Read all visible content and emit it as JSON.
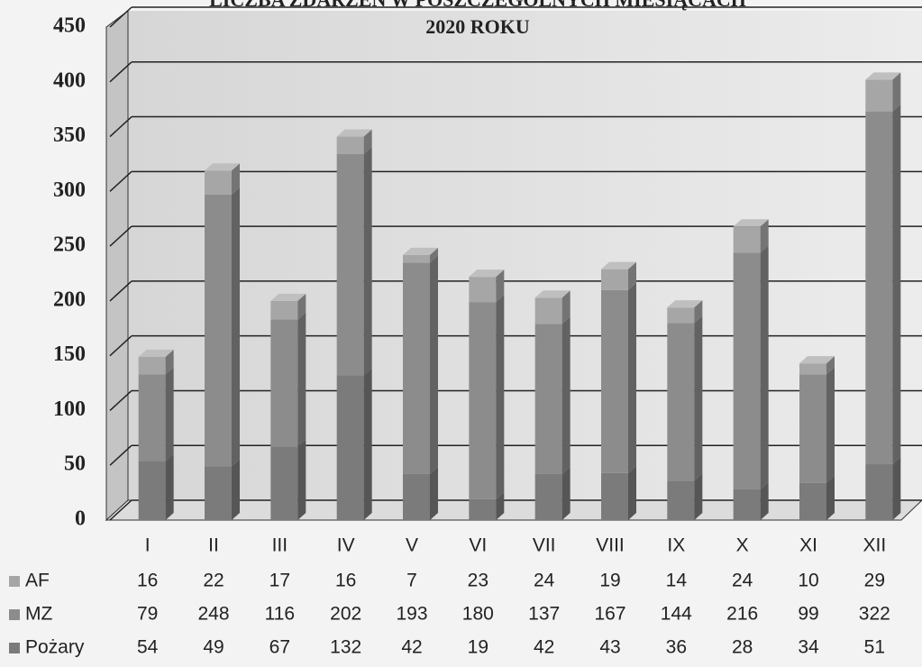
{
  "chart_data": {
    "type": "bar",
    "stacked": true,
    "title": "LICZBA ZDARZEŃ W POSZCZEGÓLNYCH MIESIĄCACH",
    "subtitle": "2020 ROKU",
    "categories": [
      "I",
      "II",
      "III",
      "IV",
      "V",
      "VI",
      "VII",
      "VIII",
      "IX",
      "X",
      "XI",
      "XII"
    ],
    "series": [
      {
        "name": "AF",
        "color": "#a6a6a6",
        "values": [
          16,
          22,
          17,
          16,
          7,
          23,
          24,
          19,
          14,
          24,
          10,
          29
        ]
      },
      {
        "name": "MZ",
        "color": "#8c8c8c",
        "values": [
          79,
          248,
          116,
          202,
          193,
          180,
          137,
          167,
          144,
          216,
          99,
          322
        ]
      },
      {
        "name": "Pożary",
        "color": "#7b7b7b",
        "values": [
          54,
          49,
          67,
          132,
          42,
          19,
          42,
          43,
          36,
          28,
          34,
          51
        ]
      }
    ],
    "ylim": [
      0,
      450
    ],
    "yticks": [
      0,
      50,
      100,
      150,
      200,
      250,
      300,
      350,
      400,
      450
    ],
    "grid": true
  }
}
